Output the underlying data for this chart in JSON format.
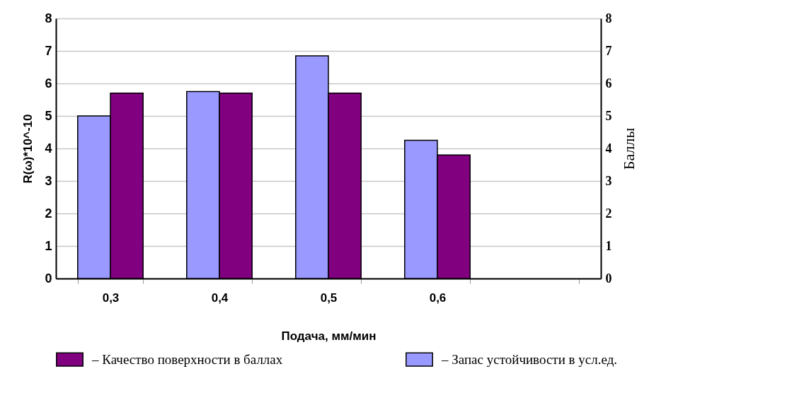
{
  "chart_data": {
    "type": "bar",
    "xlabel": "Подача, мм/мин",
    "ylabel": "R(ω)*10^-10",
    "y2label": "Баллы",
    "categories": [
      "0,3",
      "0,4",
      "0,5",
      "0,6",
      null
    ],
    "series": [
      {
        "name": "– Запас устойчивости в усл.ед.",
        "color": "#9999ff",
        "values": [
          5.0,
          5.75,
          6.85,
          4.25,
          null
        ]
      },
      {
        "name": "– Качество поверхности в баллах",
        "color": "#800080",
        "values": [
          5.7,
          5.7,
          5.7,
          3.8,
          null
        ]
      }
    ],
    "ylim": [
      0,
      8
    ],
    "yticks": [
      0,
      1,
      2,
      3,
      4,
      5,
      6,
      7,
      8
    ],
    "y2lim": [
      0,
      8
    ],
    "y2ticks": [
      0,
      1,
      2,
      3,
      4,
      5,
      6,
      7,
      8
    ],
    "grid": "y",
    "legend": "bottom"
  }
}
